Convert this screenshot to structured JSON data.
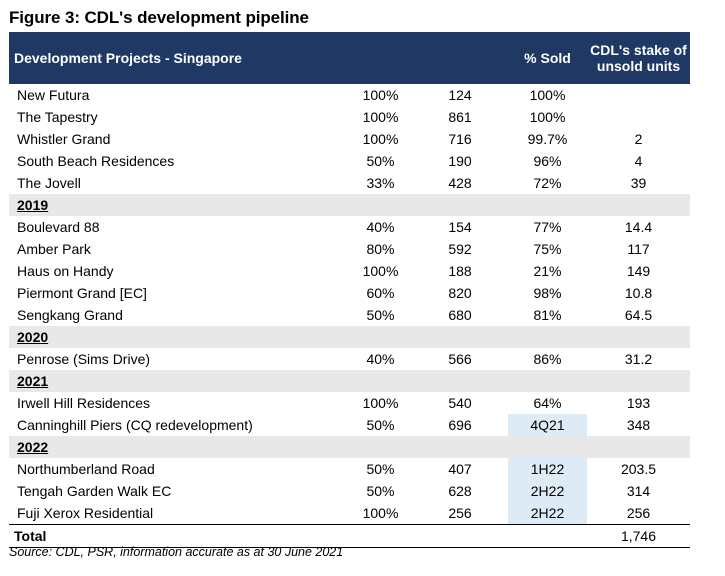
{
  "figure_title": "Figure 3: CDL's development pipeline",
  "header": {
    "project": "Development Projects - Singapore",
    "pct_sold": "% Sold",
    "stake_unsold": "CDL's stake of unsold units"
  },
  "sections": [
    {
      "year": "",
      "rows": [
        [
          "New Futura",
          "100%",
          "124",
          "100%",
          ""
        ],
        [
          "The Tapestry",
          "100%",
          "861",
          "100%",
          ""
        ],
        [
          "Whistler Grand",
          "100%",
          "716",
          "99.7%",
          "2"
        ],
        [
          "South Beach Residences",
          "50%",
          "190",
          "96%",
          "4"
        ],
        [
          "The Jovell",
          "33%",
          "428",
          "72%",
          "39"
        ]
      ]
    },
    {
      "year": "2019",
      "rows": [
        [
          "Boulevard 88",
          "40%",
          "154",
          "77%",
          "14.4"
        ],
        [
          "Amber Park",
          "80%",
          "592",
          "75%",
          "117"
        ],
        [
          "Haus on Handy",
          "100%",
          "188",
          "21%",
          "149"
        ],
        [
          "Piermont Grand [EC]",
          "60%",
          "820",
          "98%",
          "10.8"
        ],
        [
          "Sengkang Grand",
          "50%",
          "680",
          "81%",
          "64.5"
        ]
      ]
    },
    {
      "year": "2020",
      "rows": [
        [
          "Penrose (Sims Drive)",
          "40%",
          "566",
          "86%",
          "31.2"
        ]
      ]
    },
    {
      "year": "2021",
      "rows": [
        [
          "Irwell Hill Residences",
          "100%",
          "540",
          "64%",
          "193"
        ],
        [
          "Canninghill Piers (CQ redevelopment)",
          "50%",
          "696",
          "4Q21",
          "348"
        ]
      ]
    },
    {
      "year": "2022",
      "rows": [
        [
          "Northumberland Road",
          "50%",
          "407",
          "1H22",
          "203.5"
        ],
        [
          "Tengah Garden Walk EC",
          "50%",
          "628",
          "2H22",
          "314"
        ],
        [
          "Fuji Xerox Residential",
          "100%",
          "256",
          "2H22",
          "256"
        ]
      ]
    }
  ],
  "total": {
    "label": "Total",
    "value": "1,746"
  },
  "source": "Source: CDL, PSR, information accurate as at 30 June 2021",
  "colors": {
    "header_bg": "#1f3864",
    "year_bg": "#e8e8e8",
    "launch_highlight": "#ddebf7"
  }
}
